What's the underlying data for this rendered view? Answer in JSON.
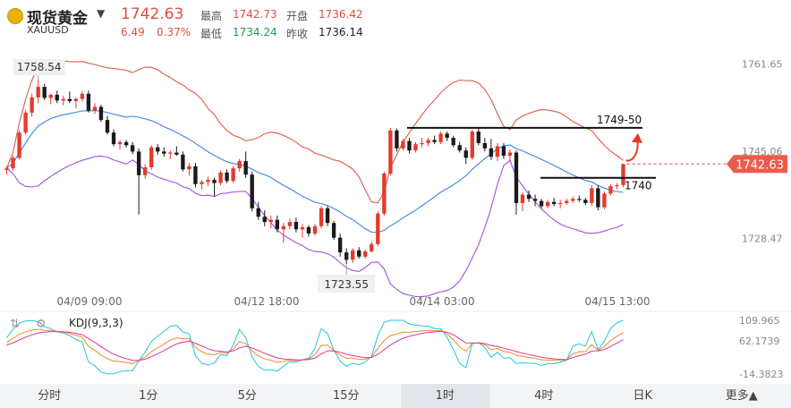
{
  "header": {
    "name": "现货黄金",
    "symbol": "XAUUSD",
    "price": "1742.63",
    "change": "6.49",
    "change_pct": "0.37%",
    "high_label": "最高",
    "high": "1742.73",
    "open_label": "开盘",
    "open": "1736.42",
    "low_label": "最低",
    "low": "1734.24",
    "prev_label": "昨收",
    "prev": "1736.14"
  },
  "chart_data": {
    "type": "candlestick",
    "y_ticks": [
      "1761.65",
      "1745.06",
      "1728.47"
    ],
    "y_range": [
      1718.5,
      1766.0
    ],
    "x_ticks": [
      "04/09 09:00",
      "04/12 18:00",
      "04/14 03:00",
      "04/15 13:00"
    ],
    "current_price_tag": "1742.63",
    "high_marker": "1758.54",
    "low_marker": "1723.55",
    "annotations": [
      {
        "text": "1749-50",
        "value": 1749.5
      },
      {
        "text": "1740",
        "value": 1740.0
      }
    ],
    "indicator_bands": [
      "Bollinger upper",
      "Bollinger middle",
      "Bollinger lower"
    ],
    "candles": [
      [
        1741.5,
        1742.2,
        1740.6,
        1741.8
      ],
      [
        1741.8,
        1744.2,
        1741.3,
        1743.8
      ],
      [
        1743.8,
        1749.0,
        1743.5,
        1748.6
      ],
      [
        1748.6,
        1753.0,
        1748.2,
        1752.4
      ],
      [
        1752.4,
        1756.0,
        1751.6,
        1755.3
      ],
      [
        1755.3,
        1758.5,
        1754.2,
        1757.3
      ],
      [
        1757.3,
        1757.9,
        1754.8,
        1755.2
      ],
      [
        1755.2,
        1756.0,
        1754.0,
        1755.8
      ],
      [
        1755.8,
        1756.6,
        1754.2,
        1754.7
      ],
      [
        1754.7,
        1755.6,
        1753.8,
        1755.0
      ],
      [
        1755.0,
        1756.4,
        1754.2,
        1754.6
      ],
      [
        1754.6,
        1755.3,
        1753.2,
        1755.0
      ],
      [
        1755.0,
        1756.5,
        1754.5,
        1756.0
      ],
      [
        1756.0,
        1756.6,
        1752.4,
        1752.8
      ],
      [
        1752.8,
        1754.2,
        1752.2,
        1753.5
      ],
      [
        1753.5,
        1753.9,
        1750.6,
        1751.0
      ],
      [
        1751.0,
        1751.8,
        1748.2,
        1748.6
      ],
      [
        1748.6,
        1749.2,
        1746.0,
        1746.4
      ],
      [
        1746.4,
        1747.2,
        1745.4,
        1746.8
      ],
      [
        1746.8,
        1747.2,
        1745.8,
        1746.2
      ],
      [
        1746.2,
        1746.8,
        1744.5,
        1745.0
      ],
      [
        1745.0,
        1745.6,
        1733.0,
        1740.5
      ],
      [
        1740.5,
        1742.6,
        1739.8,
        1742.0
      ],
      [
        1742.0,
        1746.2,
        1741.5,
        1745.8
      ],
      [
        1745.8,
        1746.4,
        1744.4,
        1745.0
      ],
      [
        1745.0,
        1745.8,
        1744.0,
        1744.6
      ],
      [
        1744.6,
        1745.2,
        1743.6,
        1744.8
      ],
      [
        1744.8,
        1746.0,
        1744.2,
        1744.4
      ],
      [
        1744.4,
        1745.0,
        1741.2,
        1741.6
      ],
      [
        1741.6,
        1742.8,
        1740.4,
        1742.2
      ],
      [
        1742.2,
        1742.8,
        1738.2,
        1738.8
      ],
      [
        1738.8,
        1739.6,
        1737.8,
        1739.2
      ],
      [
        1739.2,
        1740.2,
        1738.4,
        1739.6
      ],
      [
        1739.6,
        1740.0,
        1736.5,
        1739.0
      ],
      [
        1739.0,
        1741.4,
        1738.6,
        1741.0
      ],
      [
        1741.0,
        1741.6,
        1739.0,
        1739.4
      ],
      [
        1739.4,
        1742.2,
        1739.0,
        1741.8
      ],
      [
        1741.8,
        1743.6,
        1741.2,
        1743.2
      ],
      [
        1743.2,
        1745.0,
        1740.0,
        1740.6
      ],
      [
        1740.6,
        1741.2,
        1733.6,
        1734.2
      ],
      [
        1734.2,
        1735.4,
        1732.0,
        1732.6
      ],
      [
        1732.6,
        1733.8,
        1730.8,
        1731.6
      ],
      [
        1731.6,
        1732.8,
        1730.4,
        1732.0
      ],
      [
        1732.0,
        1732.8,
        1729.6,
        1730.2
      ],
      [
        1730.2,
        1731.4,
        1727.6,
        1730.8
      ],
      [
        1730.8,
        1732.2,
        1730.2,
        1731.6
      ],
      [
        1731.6,
        1732.4,
        1729.6,
        1730.2
      ],
      [
        1730.2,
        1731.2,
        1728.6,
        1730.6
      ],
      [
        1730.6,
        1731.0,
        1728.8,
        1729.4
      ],
      [
        1729.4,
        1731.2,
        1729.0,
        1730.8
      ],
      [
        1730.8,
        1734.6,
        1730.4,
        1734.2
      ],
      [
        1734.2,
        1734.6,
        1730.8,
        1731.4
      ],
      [
        1731.4,
        1731.8,
        1728.2,
        1728.6
      ],
      [
        1728.6,
        1729.4,
        1725.0,
        1725.8
      ],
      [
        1725.8,
        1726.6,
        1723.6,
        1724.4
      ],
      [
        1724.4,
        1726.6,
        1723.8,
        1726.2
      ],
      [
        1726.2,
        1726.8,
        1724.6,
        1725.0
      ],
      [
        1725.0,
        1726.4,
        1724.6,
        1726.0
      ],
      [
        1726.0,
        1727.8,
        1725.8,
        1727.4
      ],
      [
        1727.4,
        1733.6,
        1727.0,
        1733.2
      ],
      [
        1733.2,
        1741.2,
        1732.8,
        1740.8
      ],
      [
        1740.8,
        1749.5,
        1740.4,
        1749.0
      ],
      [
        1749.0,
        1749.4,
        1745.0,
        1745.6
      ],
      [
        1745.6,
        1747.4,
        1745.2,
        1747.0
      ],
      [
        1747.0,
        1747.6,
        1744.6,
        1745.2
      ],
      [
        1745.2,
        1746.8,
        1744.8,
        1746.4
      ],
      [
        1746.4,
        1747.6,
        1745.8,
        1746.6
      ],
      [
        1746.6,
        1747.6,
        1746.0,
        1747.2
      ],
      [
        1747.2,
        1748.0,
        1746.4,
        1746.8
      ],
      [
        1746.8,
        1748.8,
        1746.4,
        1748.4
      ],
      [
        1748.4,
        1748.8,
        1747.0,
        1747.6
      ],
      [
        1747.6,
        1748.0,
        1745.8,
        1746.2
      ],
      [
        1746.2,
        1746.8,
        1744.8,
        1745.2
      ],
      [
        1745.2,
        1745.8,
        1742.6,
        1743.8
      ],
      [
        1743.8,
        1749.2,
        1743.4,
        1748.8
      ],
      [
        1748.8,
        1749.4,
        1746.2,
        1746.6
      ],
      [
        1746.6,
        1747.6,
        1745.0,
        1745.6
      ],
      [
        1745.6,
        1747.4,
        1743.4,
        1744.0
      ],
      [
        1744.0,
        1746.6,
        1743.2,
        1746.0
      ],
      [
        1746.0,
        1746.6,
        1743.6,
        1744.2
      ],
      [
        1744.2,
        1745.4,
        1743.0,
        1744.8
      ],
      [
        1744.8,
        1745.2,
        1733.0,
        1735.2
      ],
      [
        1735.2,
        1737.2,
        1733.6,
        1736.8
      ],
      [
        1736.8,
        1737.6,
        1735.4,
        1736.0
      ],
      [
        1736.0,
        1736.8,
        1734.6,
        1735.6
      ],
      [
        1735.6,
        1736.0,
        1734.2,
        1734.6
      ],
      [
        1734.6,
        1735.8,
        1734.2,
        1735.4
      ],
      [
        1735.4,
        1736.2,
        1734.6,
        1735.0
      ],
      [
        1735.0,
        1735.8,
        1734.2,
        1735.2
      ],
      [
        1735.2,
        1736.0,
        1734.8,
        1735.6
      ],
      [
        1735.6,
        1736.4,
        1735.2,
        1736.0
      ],
      [
        1736.0,
        1736.6,
        1735.4,
        1735.8
      ],
      [
        1735.8,
        1736.2,
        1734.8,
        1735.2
      ],
      [
        1735.2,
        1738.6,
        1734.6,
        1738.0
      ],
      [
        1738.0,
        1738.6,
        1733.8,
        1734.4
      ],
      [
        1734.4,
        1737.4,
        1734.0,
        1737.0
      ],
      [
        1737.0,
        1738.8,
        1736.6,
        1738.4
      ],
      [
        1738.4,
        1739.0,
        1737.8,
        1738.6
      ],
      [
        1738.6,
        1742.7,
        1738.2,
        1742.6
      ]
    ]
  },
  "kdj": {
    "label": "KDJ(9,3,3)",
    "y_ticks": [
      "109.965",
      "62.1739",
      "-14.3823"
    ],
    "y_range": [
      -14.3823,
      109.965
    ]
  },
  "timeframes": [
    "分时",
    "1分",
    "5分",
    "15分",
    "1时",
    "4时",
    "日K",
    "更多▲"
  ],
  "active_timeframe": "1时",
  "colors": {
    "up": "#e23b2e",
    "down": "#1a1a1a",
    "upper": "#e05a48",
    "mid": "#3a86e0",
    "lower": "#9b55e0"
  }
}
